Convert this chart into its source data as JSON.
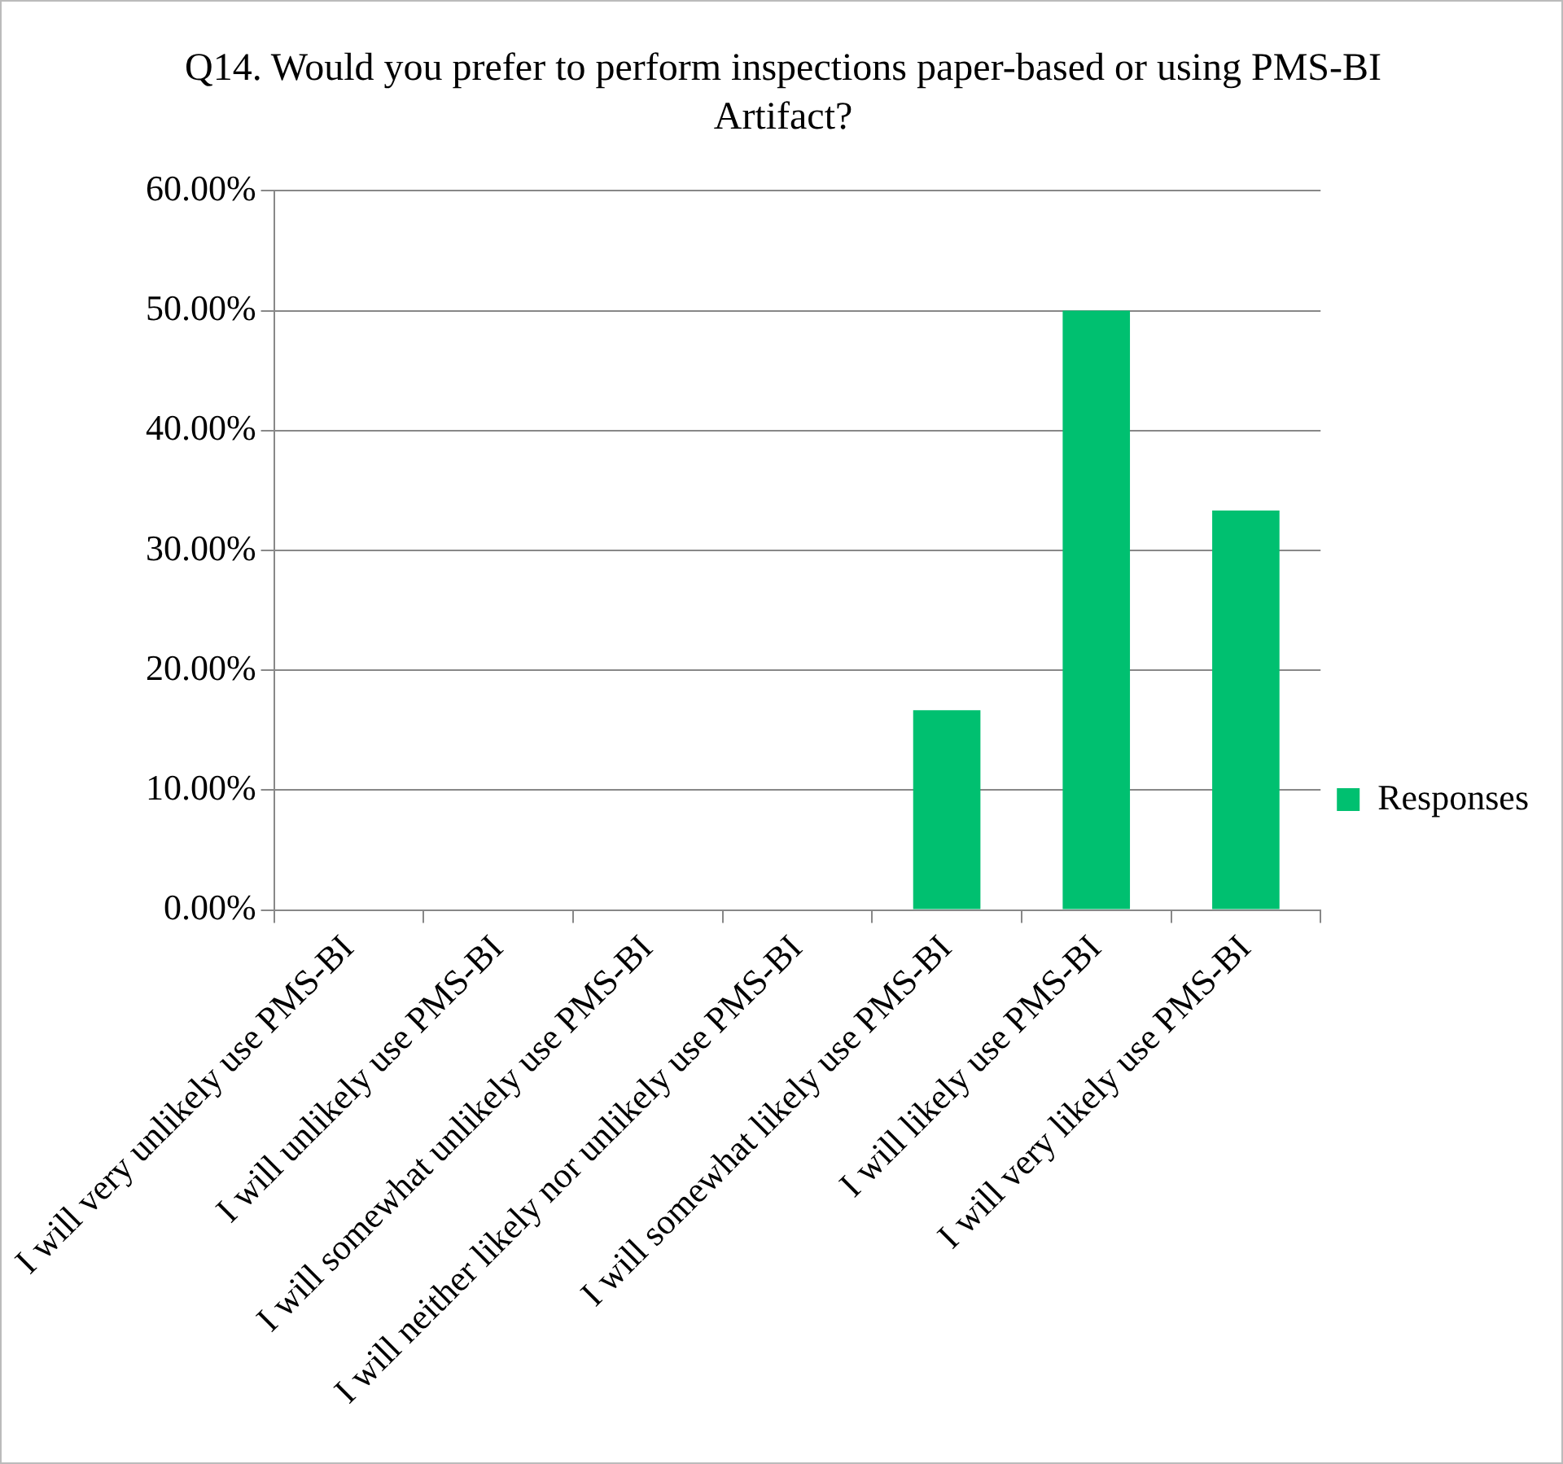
{
  "chart_data": {
    "type": "bar",
    "title": "Q14. Would you prefer to perform inspections paper-based or using PMS-BI Artifact?",
    "categories": [
      "I will very unlikely use PMS-BI",
      "I will unlikely use PMS-BI",
      "I will somewhat unlikely use PMS-BI",
      "I will neither likely nor unlikely use PMS-BI",
      "I will somewhat likely use PMS-BI",
      "I will likely use PMS-BI",
      "I will very likely use PMS-BI"
    ],
    "series": [
      {
        "name": "Responses",
        "color": "#00c070",
        "values": [
          0,
          0,
          0,
          0,
          16.67,
          50,
          33.33
        ]
      }
    ],
    "ylim": [
      0,
      60
    ],
    "yticks": [
      {
        "value": 0,
        "label": "0.00%"
      },
      {
        "value": 10,
        "label": "10.00%"
      },
      {
        "value": 20,
        "label": "20.00%"
      },
      {
        "value": 30,
        "label": "30.00%"
      },
      {
        "value": 40,
        "label": "40.00%"
      },
      {
        "value": 50,
        "label": "50.00%"
      },
      {
        "value": 60,
        "label": "60.00%"
      }
    ],
    "grid": "y",
    "legend": "right"
  }
}
